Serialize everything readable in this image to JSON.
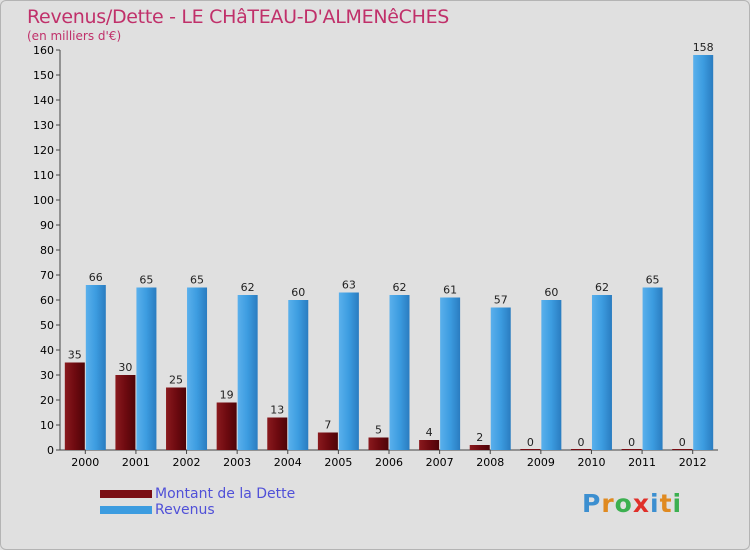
{
  "title": "Revenus/Dette - LE CHâTEAU-D'ALMENêCHES",
  "subtitle": "(en milliers d'€)",
  "colors": {
    "debt": "#7a0e14",
    "revenue": "#3c9ce0",
    "title": "#c0306a",
    "legend_text": "#5050d8"
  },
  "chart_data": {
    "type": "bar",
    "title": "Revenus/Dette - LE CHâTEAU-D'ALMENêCHES",
    "ylabel": "(en milliers d'€)",
    "ylim": [
      0,
      160
    ],
    "yticks": [
      0,
      10,
      20,
      30,
      40,
      50,
      60,
      70,
      80,
      90,
      100,
      110,
      120,
      130,
      140,
      150,
      160
    ],
    "grid": false,
    "legend_position": "bottom-left",
    "categories": [
      "2000",
      "2001",
      "2002",
      "2003",
      "2004",
      "2005",
      "2006",
      "2007",
      "2008",
      "2009",
      "2010",
      "2011",
      "2012"
    ],
    "series": [
      {
        "name": "Montant de la Dette",
        "values": [
          35,
          30,
          25,
          19,
          13,
          7,
          5,
          4,
          2,
          0,
          0,
          0,
          0
        ]
      },
      {
        "name": "Revenus",
        "values": [
          66,
          65,
          65,
          62,
          60,
          63,
          62,
          61,
          57,
          60,
          62,
          65,
          158
        ]
      }
    ]
  },
  "legend": [
    {
      "label": "Montant de la Dette",
      "color": "#7a0e14"
    },
    {
      "label": "Revenus",
      "color": "#3c9ce0"
    }
  ],
  "logo": {
    "letters": [
      "P",
      "r",
      "o",
      "x",
      "i",
      "t",
      "i"
    ],
    "colors": [
      "#3c8fd0",
      "#e08a20",
      "#3cb050",
      "#e0302a",
      "#3c8fd0",
      "#e08a20",
      "#3cb050"
    ]
  }
}
